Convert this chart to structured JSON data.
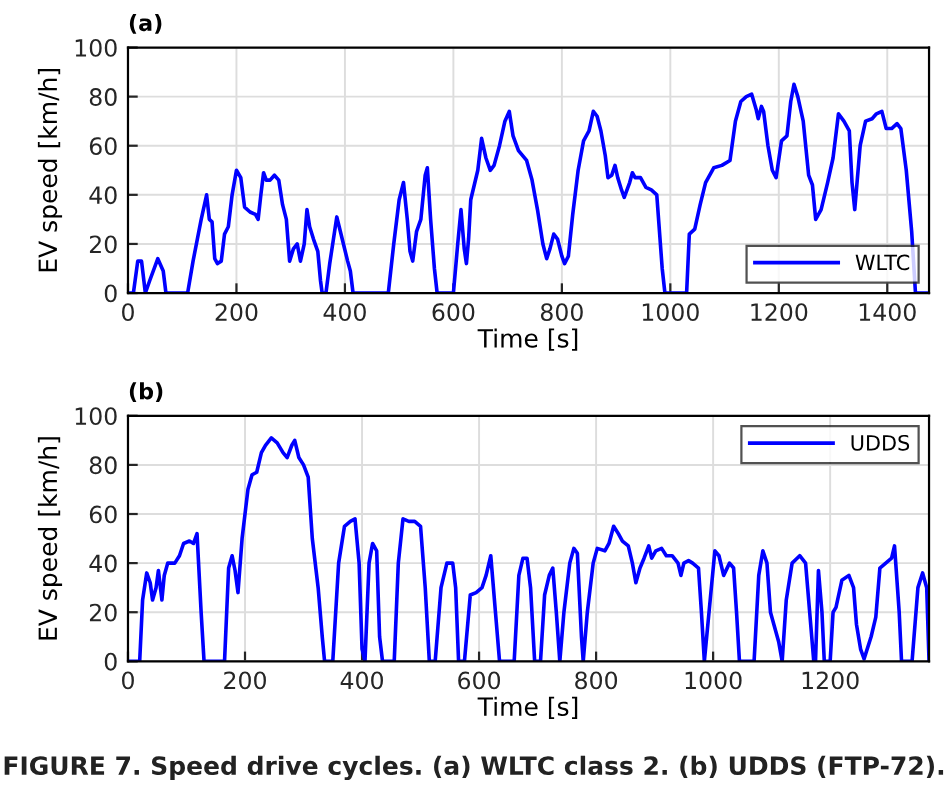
{
  "chart_data": [
    {
      "type": "line",
      "title": "(a)",
      "xlabel": "Time [s]",
      "ylabel": "EV speed [km/h]",
      "xlim": [
        0,
        1477
      ],
      "xticks": [
        0,
        200,
        400,
        600,
        800,
        1000,
        1200,
        1400
      ],
      "ylim": [
        0,
        100
      ],
      "yticks": [
        0,
        20,
        40,
        60,
        80,
        100
      ],
      "grid": true,
      "legend": "bottom right",
      "marker": "none",
      "line_style": "solid",
      "series": [
        {
          "name": "WLTC",
          "color": "#0000ff",
          "x": [
            0,
            10,
            18,
            25,
            32,
            40,
            55,
            65,
            70,
            110,
            120,
            135,
            145,
            150,
            155,
            160,
            165,
            172,
            178,
            185,
            192,
            200,
            208,
            215,
            225,
            235,
            240,
            245,
            250,
            255,
            262,
            270,
            278,
            285,
            292,
            298,
            305,
            312,
            318,
            325,
            330,
            335,
            342,
            350,
            355,
            358,
            365,
            372,
            385,
            395,
            405,
            410,
            415,
            480,
            490,
            500,
            508,
            515,
            520,
            525,
            532,
            540,
            548,
            552,
            558,
            565,
            570,
            600,
            608,
            614,
            620,
            624,
            628,
            632,
            645,
            652,
            660,
            668,
            675,
            685,
            695,
            703,
            710,
            720,
            735,
            745,
            755,
            765,
            772,
            778,
            785,
            792,
            800,
            805,
            812,
            820,
            830,
            840,
            850,
            858,
            865,
            872,
            880,
            885,
            892,
            898,
            903,
            910,
            915,
            925,
            930,
            935,
            945,
            955,
            965,
            975,
            985,
            990,
            1030,
            1035,
            1045,
            1055,
            1065,
            1080,
            1095,
            1110,
            1120,
            1130,
            1140,
            1150,
            1158,
            1162,
            1168,
            1172,
            1180,
            1188,
            1195,
            1205,
            1215,
            1222,
            1228,
            1235,
            1245,
            1255,
            1262,
            1268,
            1278,
            1290,
            1300,
            1310,
            1320,
            1330,
            1335,
            1340,
            1350,
            1360,
            1372,
            1380,
            1390,
            1398,
            1408,
            1418,
            1425,
            1435,
            1445,
            1452,
            1477
          ],
          "values": [
            0,
            0,
            13,
            13,
            0,
            5,
            14,
            9,
            0,
            0,
            13,
            30,
            40,
            30,
            29,
            14,
            12,
            13,
            24,
            27,
            40,
            50,
            47,
            35,
            33,
            32,
            30,
            40,
            49,
            46,
            46,
            48,
            46,
            36,
            30,
            13,
            18,
            20,
            13,
            20,
            34,
            27,
            22,
            17,
            5,
            0,
            0,
            12,
            31,
            22,
            13,
            9,
            0,
            0,
            20,
            38,
            45,
            30,
            17,
            13,
            25,
            30,
            48,
            51,
            30,
            10,
            0,
            0,
            20,
            34,
            18,
            12,
            22,
            38,
            50,
            63,
            55,
            50,
            52,
            60,
            70,
            74,
            64,
            58,
            54,
            46,
            34,
            20,
            14,
            18,
            24,
            22,
            15,
            12,
            15,
            32,
            50,
            62,
            66,
            74,
            72,
            66,
            56,
            47,
            48,
            52,
            47,
            42,
            39,
            45,
            49,
            47,
            47,
            43,
            42,
            40,
            10,
            0,
            0,
            24,
            26,
            36,
            45,
            51,
            52,
            54,
            70,
            78,
            80,
            81,
            75,
            71,
            76,
            74,
            60,
            50,
            47,
            62,
            64,
            78,
            85,
            80,
            70,
            48,
            44,
            30,
            34,
            45,
            55,
            73,
            70,
            66,
            45,
            34,
            60,
            70,
            71,
            73,
            74,
            67,
            67,
            69,
            67,
            50,
            25,
            0,
            0
          ]
        }
      ]
    },
    {
      "type": "line",
      "title": "(b)",
      "xlabel": "Time [s]",
      "ylabel": "EV speed [km/h]",
      "xlim": [
        0,
        1369
      ],
      "xticks": [
        0,
        200,
        400,
        600,
        800,
        1000,
        1200
      ],
      "ylim": [
        0,
        100
      ],
      "yticks": [
        0,
        20,
        40,
        60,
        80,
        100
      ],
      "grid": true,
      "legend": "top right",
      "marker": "none",
      "line_style": "solid",
      "annotations": [
        "FIGURE 7. Speed drive cycles. (a) WLTC class 2. (b) UDDS (FTP-72)."
      ],
      "series": [
        {
          "name": "UDDS",
          "color": "#0000ff",
          "x": [
            0,
            20,
            25,
            32,
            38,
            42,
            48,
            52,
            58,
            62,
            68,
            80,
            88,
            95,
            105,
            112,
            118,
            125,
            130,
            165,
            172,
            178,
            183,
            188,
            195,
            205,
            212,
            220,
            228,
            235,
            245,
            255,
            265,
            272,
            280,
            285,
            292,
            300,
            308,
            315,
            325,
            332,
            336,
            350,
            360,
            370,
            380,
            388,
            395,
            400,
            405,
            412,
            418,
            425,
            430,
            435,
            455,
            462,
            470,
            480,
            490,
            500,
            508,
            515,
            525,
            535,
            545,
            555,
            560,
            565,
            575,
            585,
            595,
            605,
            612,
            620,
            628,
            635,
            660,
            668,
            675,
            682,
            688,
            695,
            705,
            712,
            720,
            726,
            732,
            738,
            745,
            755,
            762,
            768,
            775,
            778,
            785,
            795,
            802,
            815,
            822,
            830,
            838,
            845,
            855,
            862,
            868,
            875,
            882,
            890,
            895,
            902,
            912,
            920,
            930,
            940,
            945,
            950,
            958,
            965,
            975,
            980,
            985,
            995,
            1003,
            1010,
            1018,
            1028,
            1035,
            1040,
            1045,
            1070,
            1078,
            1085,
            1092,
            1098,
            1105,
            1112,
            1118,
            1125,
            1135,
            1148,
            1158,
            1165,
            1172,
            1175,
            1180,
            1186,
            1190,
            1200,
            1205,
            1210,
            1220,
            1232,
            1240,
            1245,
            1252,
            1258,
            1270,
            1278,
            1285,
            1295,
            1305,
            1310,
            1318,
            1322,
            1340,
            1350,
            1358,
            1365,
            1369
          ],
          "values": [
            0,
            0,
            25,
            36,
            32,
            25,
            30,
            37,
            25,
            35,
            40,
            40,
            43,
            48,
            49,
            48,
            52,
            20,
            0,
            0,
            38,
            43,
            37,
            28,
            50,
            70,
            76,
            77,
            85,
            88,
            91,
            89,
            85,
            83,
            88,
            90,
            83,
            80,
            75,
            50,
            30,
            10,
            0,
            0,
            40,
            55,
            57,
            58,
            40,
            5,
            0,
            40,
            48,
            45,
            10,
            0,
            0,
            40,
            58,
            57,
            57,
            55,
            30,
            0,
            0,
            30,
            40,
            40,
            30,
            0,
            0,
            27,
            28,
            30,
            35,
            43,
            20,
            0,
            0,
            35,
            42,
            42,
            30,
            0,
            0,
            27,
            35,
            38,
            20,
            0,
            20,
            40,
            46,
            44,
            10,
            0,
            20,
            40,
            46,
            45,
            48,
            55,
            52,
            49,
            47,
            40,
            32,
            38,
            42,
            47,
            42,
            45,
            46,
            43,
            43,
            40,
            35,
            40,
            41,
            40,
            38,
            20,
            0,
            25,
            45,
            43,
            35,
            40,
            38,
            20,
            0,
            0,
            35,
            45,
            40,
            20,
            14,
            8,
            0,
            25,
            40,
            43,
            40,
            20,
            0,
            0,
            37,
            20,
            0,
            0,
            20,
            22,
            33,
            35,
            30,
            15,
            5,
            1,
            10,
            18,
            38,
            40,
            42,
            47,
            20,
            0,
            0,
            30,
            36,
            30,
            0
          ]
        }
      ]
    }
  ]
}
